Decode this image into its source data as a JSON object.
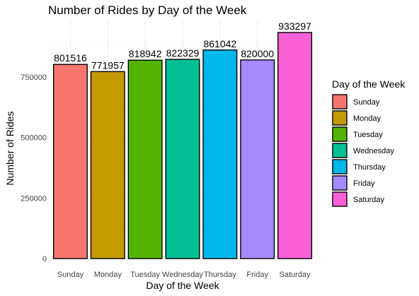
{
  "chart_data": {
    "type": "bar",
    "title": "Number of Rides by Day of the Week",
    "xlabel": "Day of the Week",
    "ylabel": "Number of Rides",
    "categories": [
      "Sunday",
      "Monday",
      "Tuesday",
      "Wednesday",
      "Thursday",
      "Friday",
      "Saturday"
    ],
    "values": [
      801516,
      771957,
      818942,
      822329,
      861042,
      820000,
      933297
    ],
    "colors": [
      "#F8766D",
      "#C49A00",
      "#53B400",
      "#00C094",
      "#00B6EB",
      "#A58AFF",
      "#FB61D7"
    ],
    "yticks": [
      0,
      250000,
      500000,
      750000
    ],
    "ytick_labels": [
      "0",
      "250000",
      "500000",
      "750000"
    ],
    "ylim": [
      0,
      980000
    ],
    "grid": true,
    "legend": {
      "title": "Day of the Week",
      "position": "right",
      "entries": [
        "Sunday",
        "Monday",
        "Tuesday",
        "Wednesday",
        "Thursday",
        "Friday",
        "Saturday"
      ]
    },
    "data_labels": [
      "801516",
      "771957",
      "818942",
      "822329",
      "861042",
      "820000",
      "933297"
    ]
  }
}
